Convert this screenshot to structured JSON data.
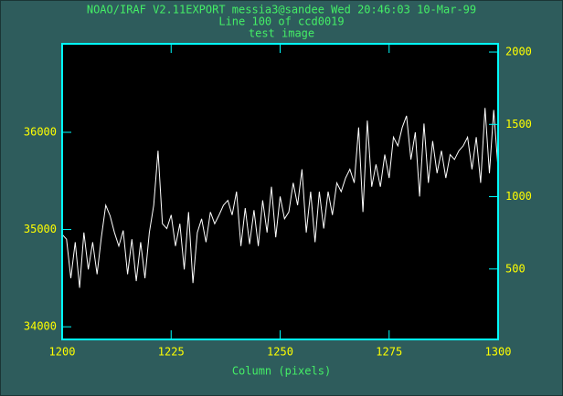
{
  "chart_data": {
    "type": "line",
    "title": "NOAO/IRAF V2.11EXPORT messia3@sandee Wed 20:46:03 10-Mar-99",
    "subtitle": "Line 100 of ccd0019",
    "annotations": [
      "test image"
    ],
    "x_label": "Column (pixels)",
    "x": [
      1200,
      1201,
      1202,
      1203,
      1204,
      1205,
      1206,
      1207,
      1208,
      1209,
      1210,
      1211,
      1212,
      1213,
      1214,
      1215,
      1216,
      1217,
      1218,
      1219,
      1220,
      1221,
      1222,
      1223,
      1224,
      1225,
      1226,
      1227,
      1228,
      1229,
      1230,
      1231,
      1232,
      1233,
      1234,
      1235,
      1236,
      1237,
      1238,
      1239,
      1240,
      1241,
      1242,
      1243,
      1244,
      1245,
      1246,
      1247,
      1248,
      1249,
      1250,
      1251,
      1252,
      1253,
      1254,
      1255,
      1256,
      1257,
      1258,
      1259,
      1260,
      1261,
      1262,
      1263,
      1264,
      1265,
      1266,
      1267,
      1268,
      1269,
      1270,
      1271,
      1272,
      1273,
      1274,
      1275,
      1276,
      1277,
      1278,
      1279,
      1280,
      1281,
      1282,
      1283,
      1284,
      1285,
      1286,
      1287,
      1288,
      1289,
      1290,
      1291,
      1292,
      1293,
      1294,
      1295,
      1296,
      1297,
      1298,
      1299,
      1300
    ],
    "series": [
      {
        "color": "#ffffff",
        "values": [
          34950,
          34900,
          34500,
          34870,
          34400,
          34970,
          34590,
          34870,
          34540,
          34920,
          35250,
          35140,
          34970,
          34830,
          34990,
          34540,
          34900,
          34470,
          34870,
          34500,
          34970,
          35250,
          35810,
          35060,
          35010,
          35150,
          34830,
          35060,
          34590,
          35180,
          34450,
          34970,
          35110,
          34870,
          35180,
          35060,
          35150,
          35250,
          35300,
          35150,
          35390,
          34830,
          35220,
          34850,
          35200,
          34830,
          35300,
          34970,
          35440,
          34920,
          35340,
          35110,
          35180,
          35480,
          35250,
          35620,
          34970,
          35390,
          34870,
          35390,
          35010,
          35390,
          35150,
          35480,
          35390,
          35530,
          35620,
          35480,
          36050,
          35180,
          36120,
          35440,
          35670,
          35440,
          35770,
          35530,
          35950,
          35860,
          36050,
          36170,
          35720,
          36000,
          35340,
          36090,
          35480,
          35910,
          35580,
          35810,
          35530,
          35770,
          35720,
          35810,
          35860,
          35950,
          35620,
          35950,
          35480,
          36250,
          35580,
          36230,
          35620
        ]
      }
    ],
    "xlim": [
      1200,
      1300
    ],
    "xticks": [
      1200,
      1225,
      1250,
      1275,
      1300
    ],
    "ylim": [
      33870,
      36910
    ],
    "yticks": [
      34000,
      35000,
      36000
    ],
    "y2lim": [
      13,
      2057
    ],
    "y2ticks": [
      500,
      1000,
      1500,
      2000
    ],
    "frame_color": "#00ffff",
    "tick_label_color": "#ffff00",
    "text_color": "#44ee66"
  }
}
